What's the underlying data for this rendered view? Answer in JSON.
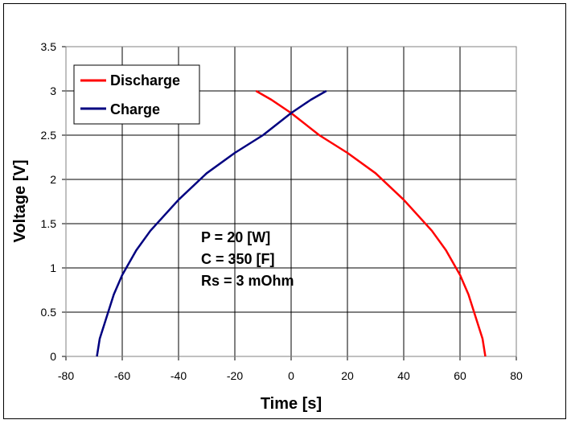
{
  "chart_data": {
    "type": "line",
    "title": "",
    "xlabel": "Time [s]",
    "ylabel": "Voltage [V]",
    "xlim": [
      -80,
      80
    ],
    "ylim": [
      0,
      3.5
    ],
    "x_ticks": [
      "-80",
      "-60",
      "-40",
      "-20",
      "0",
      "20",
      "40",
      "60",
      "80"
    ],
    "y_ticks": [
      "0",
      "0.5",
      "1",
      "1.5",
      "2",
      "2.5",
      "3",
      "3.5"
    ],
    "grid": true,
    "legend_position": "top-left",
    "series": [
      {
        "name": "Discharge",
        "color": "#ff0000",
        "points": [
          [
            -12.5,
            3.0
          ],
          [
            -7,
            2.9
          ],
          [
            0,
            2.75
          ],
          [
            10,
            2.5
          ],
          [
            20,
            2.3
          ],
          [
            30,
            2.07
          ],
          [
            40,
            1.77
          ],
          [
            50,
            1.42
          ],
          [
            55,
            1.2
          ],
          [
            60,
            0.92
          ],
          [
            63,
            0.7
          ],
          [
            66,
            0.4
          ],
          [
            68,
            0.2
          ],
          [
            69,
            0.0
          ]
        ]
      },
      {
        "name": "Charge",
        "color": "#000080",
        "points": [
          [
            -69,
            0.0
          ],
          [
            -68,
            0.2
          ],
          [
            -66,
            0.4
          ],
          [
            -63,
            0.7
          ],
          [
            -60,
            0.92
          ],
          [
            -55,
            1.2
          ],
          [
            -50,
            1.42
          ],
          [
            -40,
            1.77
          ],
          [
            -30,
            2.07
          ],
          [
            -20,
            2.3
          ],
          [
            -10,
            2.5
          ],
          [
            0,
            2.75
          ],
          [
            7,
            2.9
          ],
          [
            12.5,
            3.0
          ]
        ]
      }
    ],
    "annotations": [
      "P = 20 [W]",
      "C = 350 [F]",
      "Rs = 3 mOhm"
    ]
  }
}
